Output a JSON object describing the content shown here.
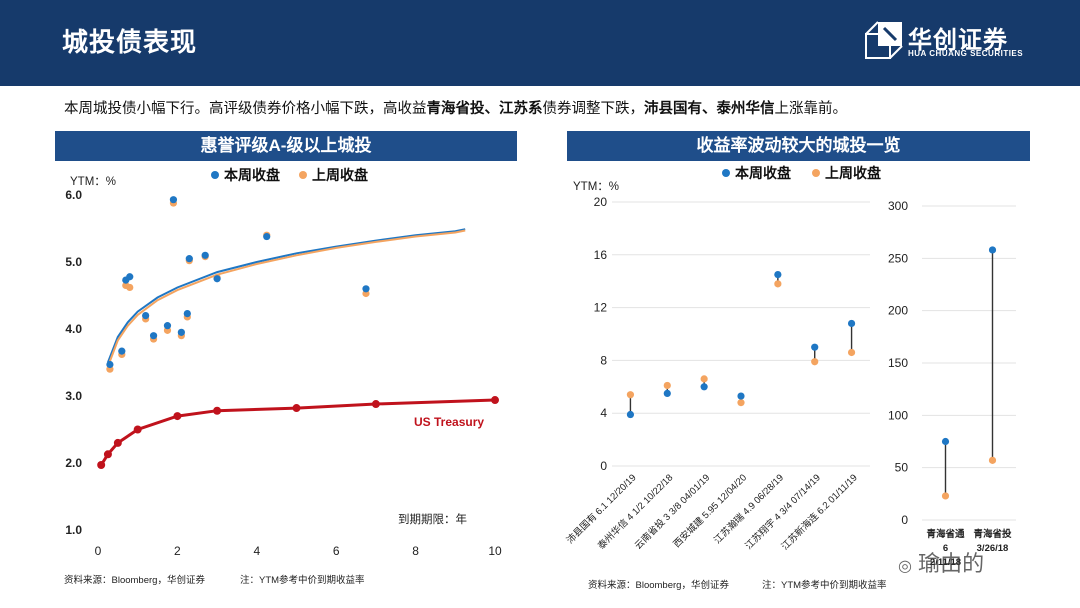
{
  "header": {
    "title": "城投债表现",
    "logo_cn": "华创证券",
    "logo_en": "HUA CHUANG SECURITIES"
  },
  "summary": {
    "p1": "本周城投债小幅下行。高评级债券价格小幅下跌，高收益",
    "b1": "青海省投、江苏系",
    "p2": "债券调整下跌，",
    "b2": "沛县国有、泰州华信",
    "p3": "上涨靠前。"
  },
  "left_panel": {
    "title": "惠誉评级A-级以上城投",
    "source": "资料来源：Bloomberg，华创证券",
    "note": "注：YTM参考中价到期收益率"
  },
  "right_panel": {
    "title": "收益率波动较大的城投一览",
    "source": "资料来源：Bloomberg，华创证券",
    "note": "注：YTM参考中价到期收益率"
  },
  "colors": {
    "this_week": "#1f77c4",
    "last_week": "#f4a460",
    "treasury": "#c0121c",
    "header_bg": "#163a6b",
    "panel_head": "#1f4e8a"
  },
  "watermark": "瑜由的",
  "chart_data": [
    {
      "type": "scatter",
      "ylabel": "YTM：%",
      "xlabel": "到期期限：年",
      "xlim": [
        0,
        10
      ],
      "ylim": [
        1.0,
        6.0
      ],
      "xticks": [
        0,
        2,
        4,
        6,
        8,
        10
      ],
      "yticks": [
        "1.0",
        "2.0",
        "3.0",
        "4.0",
        "5.0",
        "6.0"
      ],
      "legend": [
        "本周收盘",
        "上周收盘"
      ],
      "legend_position": "top",
      "grid": false,
      "series": [
        {
          "name": "本周收盘",
          "points": [
            [
              0.3,
              3.47
            ],
            [
              0.6,
              3.67
            ],
            [
              0.7,
              4.73
            ],
            [
              0.8,
              4.78
            ],
            [
              1.2,
              4.2
            ],
            [
              1.4,
              3.9
            ],
            [
              1.75,
              4.05
            ],
            [
              1.9,
              5.93
            ],
            [
              2.1,
              3.95
            ],
            [
              2.25,
              4.23
            ],
            [
              2.3,
              5.05
            ],
            [
              2.7,
              5.1
            ],
            [
              3.0,
              4.75
            ],
            [
              4.25,
              5.38
            ],
            [
              6.75,
              4.6
            ]
          ]
        },
        {
          "name": "上周收盘",
          "points": [
            [
              0.3,
              3.4
            ],
            [
              0.6,
              3.62
            ],
            [
              0.7,
              4.65
            ],
            [
              0.8,
              4.62
            ],
            [
              1.2,
              4.15
            ],
            [
              1.4,
              3.85
            ],
            [
              1.75,
              3.98
            ],
            [
              1.9,
              5.88
            ],
            [
              2.1,
              3.9
            ],
            [
              2.25,
              4.18
            ],
            [
              2.3,
              5.02
            ],
            [
              2.7,
              5.08
            ],
            [
              3.0,
              4.77
            ],
            [
              4.25,
              5.4
            ],
            [
              6.75,
              4.53
            ]
          ]
        },
        {
          "name": "本周收盘",
          "type": "line",
          "points": [
            [
              0.25,
              3.5
            ],
            [
              0.5,
              3.88
            ],
            [
              0.75,
              4.1
            ],
            [
              1,
              4.26
            ],
            [
              1.5,
              4.47
            ],
            [
              2,
              4.62
            ],
            [
              3,
              4.85
            ],
            [
              4,
              5.0
            ],
            [
              5,
              5.13
            ],
            [
              6,
              5.23
            ],
            [
              7,
              5.32
            ],
            [
              8,
              5.4
            ],
            [
              9,
              5.46
            ],
            [
              9.25,
              5.49
            ]
          ]
        },
        {
          "name": "上周收盘",
          "type": "line",
          "points": [
            [
              0.25,
              3.44
            ],
            [
              0.5,
              3.83
            ],
            [
              0.75,
              4.05
            ],
            [
              1,
              4.21
            ],
            [
              1.5,
              4.43
            ],
            [
              2,
              4.58
            ],
            [
              3,
              4.81
            ],
            [
              4,
              4.97
            ],
            [
              5,
              5.1
            ],
            [
              6,
              5.21
            ],
            [
              7,
              5.3
            ],
            [
              8,
              5.38
            ],
            [
              9,
              5.44
            ],
            [
              9.25,
              5.47
            ]
          ]
        },
        {
          "name": "US Treasury",
          "type": "line",
          "points": [
            [
              0.08,
              1.97
            ],
            [
              0.25,
              2.13
            ],
            [
              0.5,
              2.3
            ],
            [
              1,
              2.5
            ],
            [
              2,
              2.7
            ],
            [
              3,
              2.78
            ],
            [
              5,
              2.82
            ],
            [
              7,
              2.88
            ],
            [
              10,
              2.94
            ]
          ]
        }
      ]
    },
    {
      "type": "scatter",
      "ylabel": "YTM：%",
      "legend": [
        "本周收盘",
        "上周收盘"
      ],
      "legend_position": "top",
      "ylim_left": [
        0,
        20
      ],
      "yticks_left": [
        0,
        4,
        8,
        12,
        16,
        20
      ],
      "ylim_right": [
        0,
        300
      ],
      "yticks_right": [
        0,
        50,
        100,
        150,
        200,
        250,
        300
      ],
      "grid": true,
      "categories_left": [
        "沛县国有 6.1 12/20/19",
        "泰州华信 4 1/2 10/22/18",
        "云南省投 3 3/8 04/01/19",
        "西安城建 5.95 12/04/20",
        "江苏瀚瑞 4.9 06/28/19",
        "江苏翔宇 4 3/4 07/14/19",
        "江苏新海连 6.2 01/11/19"
      ],
      "this_week_left": [
        3.9,
        5.5,
        6.0,
        5.3,
        14.5,
        9.0,
        10.8
      ],
      "last_week_left": [
        5.4,
        6.1,
        6.6,
        4.8,
        13.8,
        7.9,
        8.6
      ],
      "categories_right": [
        "青海省通 6 02/11/18",
        "青海省投 6 1/4 03/26/18"
      ],
      "categories_right_visible": [
        [
          "青海省通",
          "6",
          "2/11/18"
        ],
        [
          "青海省投",
          "3/26/18"
        ]
      ],
      "this_week_right": [
        75,
        258
      ],
      "last_week_right": [
        23,
        57
      ]
    }
  ]
}
